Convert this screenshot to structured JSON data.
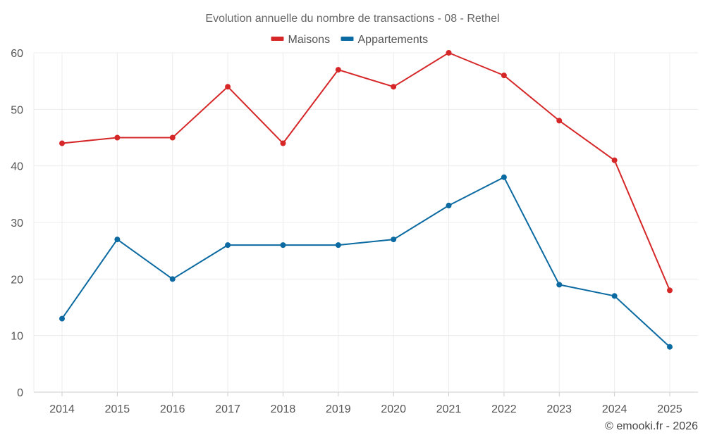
{
  "chart_data": {
    "type": "line",
    "title": "Evolution annuelle du nombre de transactions - 08 - Rethel",
    "categories": [
      "2014",
      "2015",
      "2016",
      "2017",
      "2018",
      "2019",
      "2020",
      "2021",
      "2022",
      "2023",
      "2024",
      "2025"
    ],
    "series": [
      {
        "name": "Maisons",
        "color": "#d62728",
        "values": [
          44,
          45,
          45,
          54,
          44,
          57,
          54,
          60,
          56,
          48,
          41,
          18
        ]
      },
      {
        "name": "Appartements",
        "color": "#0a6aa1",
        "values": [
          13,
          27,
          20,
          26,
          26,
          26,
          27,
          33,
          38,
          19,
          17,
          8
        ]
      }
    ],
    "ylim": [
      0,
      60
    ],
    "yticks": [
      0,
      10,
      20,
      30,
      40,
      50,
      60
    ],
    "xlabel": "",
    "ylabel": "",
    "grid": true,
    "legend": "top-center"
  },
  "credit": "© emooki.fr - 2026"
}
